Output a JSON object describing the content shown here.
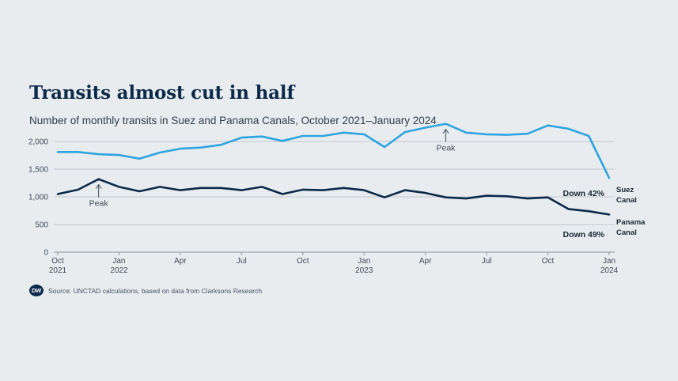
{
  "title": "Transits almost cut in half",
  "subtitle": "Number of monthly transits in Suez and Panama Canals, October 2021–January 2024",
  "source": "Source: UNCTAD calculations, based on data from Clarksons Research",
  "logo_text": "DW",
  "colors": {
    "suez": "#2fa4e0",
    "panama": "#0b2a4a",
    "grid": "#bfc6cd",
    "background": "#e9ecef"
  },
  "chart_data": {
    "type": "line",
    "x": [
      "2021-10",
      "2021-11",
      "2021-12",
      "2022-01",
      "2022-02",
      "2022-03",
      "2022-04",
      "2022-05",
      "2022-06",
      "2022-07",
      "2022-08",
      "2022-09",
      "2022-10",
      "2022-11",
      "2022-12",
      "2023-01",
      "2023-02",
      "2023-03",
      "2023-04",
      "2023-05",
      "2023-06",
      "2023-07",
      "2023-08",
      "2023-09",
      "2023-10",
      "2023-11",
      "2023-12",
      "2024-01"
    ],
    "x_tick_labels": [
      {
        "x": "2021-10",
        "lines": [
          "Oct",
          "2021"
        ]
      },
      {
        "x": "2022-01",
        "lines": [
          "Jan",
          "2022"
        ]
      },
      {
        "x": "2022-04",
        "lines": [
          "Apr"
        ]
      },
      {
        "x": "2022-07",
        "lines": [
          "Jul"
        ]
      },
      {
        "x": "2022-10",
        "lines": [
          "Oct"
        ]
      },
      {
        "x": "2023-01",
        "lines": [
          "Jan",
          "2023"
        ]
      },
      {
        "x": "2023-04",
        "lines": [
          "Apr"
        ]
      },
      {
        "x": "2023-07",
        "lines": [
          "Jul"
        ]
      },
      {
        "x": "2023-10",
        "lines": [
          "Oct"
        ]
      },
      {
        "x": "2024-01",
        "lines": [
          "Jan",
          "2024"
        ]
      }
    ],
    "y_ticks": [
      0,
      500,
      1000,
      1500,
      2000
    ],
    "y_tick_labels": [
      "0",
      "500",
      "1,000",
      "1,500",
      "2,000"
    ],
    "ylim": [
      0,
      2100
    ],
    "grid": true,
    "series": [
      {
        "key": "suez",
        "name_lines": [
          "Suez",
          "Canal"
        ],
        "values": [
          1810,
          1810,
          1770,
          1755,
          1690,
          1800,
          1870,
          1890,
          1940,
          2070,
          2090,
          2010,
          2100,
          2100,
          2160,
          2130,
          1900,
          2170,
          2250,
          2320,
          2160,
          2130,
          2120,
          2140,
          2290,
          2230,
          2100,
          1340
        ],
        "end_note": "Down 42%"
      },
      {
        "key": "panama",
        "name_lines": [
          "Panama",
          "Canal"
        ],
        "values": [
          1050,
          1130,
          1320,
          1180,
          1100,
          1180,
          1120,
          1160,
          1160,
          1120,
          1180,
          1050,
          1130,
          1120,
          1160,
          1120,
          990,
          1120,
          1070,
          990,
          970,
          1020,
          1010,
          970,
          990,
          780,
          740,
          680
        ],
        "end_note": "Down 49%"
      }
    ],
    "annotations": [
      {
        "text": "Peak",
        "series": "panama",
        "x": "2021-12"
      },
      {
        "text": "Peak",
        "series": "suez",
        "x": "2023-05"
      }
    ]
  }
}
